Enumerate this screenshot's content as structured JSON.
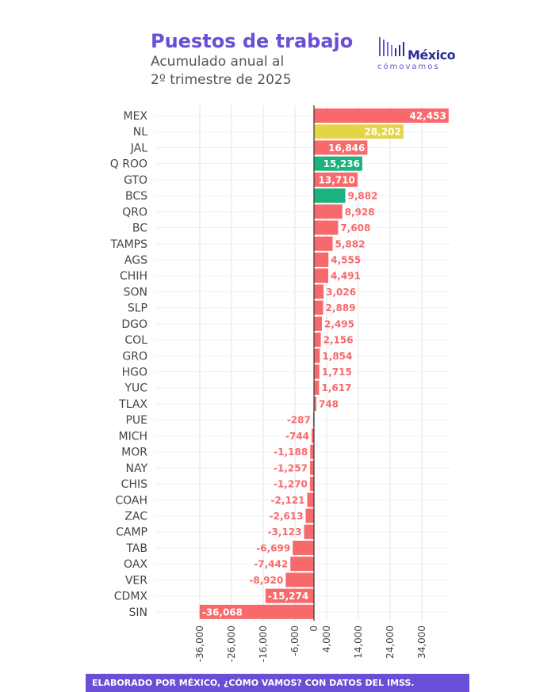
{
  "header": {
    "title": "Puestos de trabajo",
    "subtitle_line1": "Acumulado anual al",
    "subtitle_line2": "2º trimestre de 2025"
  },
  "logo": {
    "name": "México",
    "tagline": "cómovamos"
  },
  "footer": {
    "text": "ELABORADO POR MÉXICO, ¿CÓMO VAMOS? CON DATOS DEL IMSS."
  },
  "colors": {
    "positive": "#f8696b",
    "highlight_yellow": "#e3d546",
    "highlight_green": "#1ab27f",
    "accent": "#6a4fd6"
  },
  "chart_data": {
    "type": "bar",
    "orientation": "horizontal",
    "title": "Puestos de trabajo",
    "xlim": [
      -36068,
      42453
    ],
    "x_ticks": [
      -36000,
      -26000,
      -16000,
      -6000,
      0,
      4000,
      14000,
      24000,
      34000
    ],
    "x_tick_labels": [
      "-36,000",
      "-26,000",
      "-16,000",
      "-6,000",
      "0",
      "4,000",
      "14,000",
      "24,000",
      "34,000"
    ],
    "categories": [
      "MEX",
      "NL",
      "JAL",
      "Q ROO",
      "GTO",
      "BCS",
      "QRO",
      "BC",
      "TAMPS",
      "AGS",
      "CHIH",
      "SON",
      "SLP",
      "DGO",
      "COL",
      "GRO",
      "HGO",
      "YUC",
      "TLAX",
      "PUE",
      "MICH",
      "MOR",
      "NAY",
      "CHIS",
      "COAH",
      "ZAC",
      "CAMP",
      "TAB",
      "OAX",
      "VER",
      "CDMX",
      "SIN"
    ],
    "values": [
      42453,
      28202,
      16846,
      15236,
      13710,
      9882,
      8928,
      7608,
      5882,
      4555,
      4491,
      3026,
      2889,
      2495,
      2156,
      1854,
      1715,
      1617,
      748,
      -287,
      -744,
      -1188,
      -1257,
      -1270,
      -2121,
      -2613,
      -3123,
      -6699,
      -7442,
      -8920,
      -15274,
      -36068
    ],
    "labels": [
      "42,453",
      "28,202",
      "16,846",
      "15,236",
      "13,710",
      "9,882",
      "8,928",
      "7,608",
      "5,882",
      "4,555",
      "4,491",
      "3,026",
      "2,889",
      "2,495",
      "2,156",
      "1,854",
      "1,715",
      "1,617",
      "748",
      "-287",
      "-744",
      "-1,188",
      "-1,257",
      "-1,270",
      "-2,121",
      "-2,613",
      "-3,123",
      "-6,699",
      "-7,442",
      "-8,920",
      "-15,274",
      "-36,068"
    ],
    "bar_colors": [
      "positive",
      "highlight_yellow",
      "positive",
      "highlight_green",
      "positive",
      "highlight_green",
      "positive",
      "positive",
      "positive",
      "positive",
      "positive",
      "positive",
      "positive",
      "positive",
      "positive",
      "positive",
      "positive",
      "positive",
      "positive",
      "positive",
      "positive",
      "positive",
      "positive",
      "positive",
      "positive",
      "positive",
      "positive",
      "positive",
      "positive",
      "positive",
      "positive",
      "positive"
    ]
  }
}
